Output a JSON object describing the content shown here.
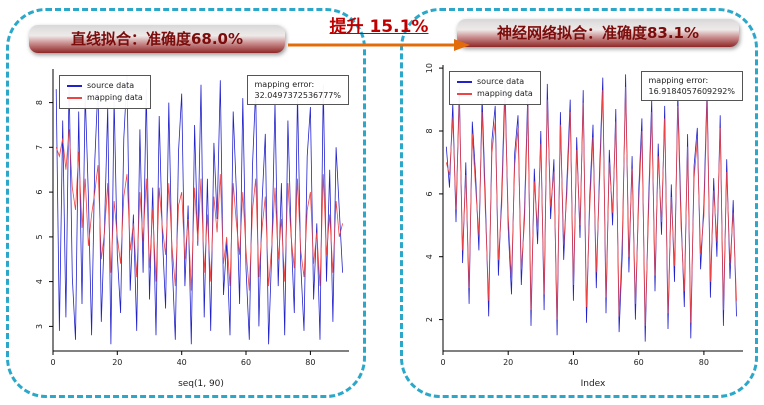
{
  "improvement": {
    "label": "提升 15.1%",
    "arrow_color": "#E36C0A"
  },
  "panels": [
    {
      "title": "直线拟合：准确度68.0%",
      "legend": [
        "source data",
        "mapping data"
      ],
      "error_label": "mapping error:",
      "error_value": "32.0497372536777%"
    },
    {
      "title": "神经网络拟合：准确度83.1%",
      "legend": [
        "source data",
        "mapping data"
      ],
      "error_label": "mapping error:",
      "error_value": "16.9184057609292%"
    }
  ],
  "chart_data": [
    {
      "type": "line",
      "xlabel": "seq(1, 90)",
      "xlim": [
        0,
        92
      ],
      "ylim": [
        2.45,
        8.75
      ],
      "xticks": [
        0,
        20,
        40,
        60,
        80
      ],
      "yticks": [
        3,
        4,
        5,
        6,
        7,
        8
      ],
      "legend_position": "top-left",
      "series": [
        {
          "name": "source data",
          "color": "#2222CC",
          "values": [
            8.3,
            2.9,
            7.6,
            3.2,
            8.5,
            4.1,
            2.7,
            7.8,
            3.5,
            8.2,
            5.9,
            2.8,
            6.7,
            8.4,
            3.1,
            5.2,
            7.9,
            2.6,
            8.1,
            4.6,
            3.3,
            7.2,
            8.6,
            3.8,
            5.5,
            2.9,
            7.4,
            4.2,
            8.3,
            3.6,
            6.1,
            2.8,
            7.7,
            5.0,
            3.4,
            8.0,
            4.5,
            2.7,
            6.9,
            8.2,
            3.9,
            5.7,
            2.6,
            7.5,
            4.8,
            8.4,
            3.2,
            6.3,
            2.9,
            7.1,
            5.4,
            8.5,
            3.7,
            4.9,
            2.8,
            7.8,
            6.0,
            3.5,
            8.1,
            4.3,
            2.7,
            6.6,
            8.3,
            3.0,
            5.8,
            7.3,
            2.6,
            4.7,
            8.0,
            3.9,
            6.2,
            2.8,
            7.6,
            5.1,
            3.3,
            8.2,
            4.4,
            2.9,
            6.8,
            7.9,
            3.6,
            5.3,
            2.7,
            8.4,
            4.0,
            6.5,
            3.1,
            7.0,
            5.6,
            4.2
          ]
        },
        {
          "name": "mapping data",
          "color": "#EE4444",
          "values": [
            7.0,
            6.8,
            7.2,
            6.5,
            7.4,
            6.1,
            5.6,
            6.9,
            5.2,
            6.3,
            4.8,
            5.5,
            6.0,
            6.6,
            4.5,
            5.1,
            6.2,
            4.2,
            5.8,
            5.0,
            4.4,
            5.9,
            6.4,
            4.7,
            5.3,
            4.1,
            6.0,
            4.9,
            6.3,
            4.3,
            5.6,
            4.0,
            6.1,
            5.2,
            4.6,
            6.2,
            4.8,
            3.9,
            5.7,
            6.0,
            4.5,
            5.4,
            3.8,
            6.1,
            4.9,
            6.3,
            4.2,
            5.5,
            4.0,
            5.9,
            5.1,
            6.4,
            4.4,
            5.0,
            3.9,
            6.2,
            5.3,
            4.6,
            6.0,
            4.7,
            3.8,
            5.6,
            6.3,
            4.1,
            5.2,
            5.9,
            3.9,
            4.8,
            6.1,
            4.5,
            5.4,
            4.0,
            6.2,
            5.0,
            4.3,
            6.3,
            4.7,
            4.1,
            5.6,
            6.0,
            4.4,
            5.1,
            3.9,
            6.4,
            4.6,
            5.5,
            4.2,
            5.8,
            5.0,
            5.3
          ]
        }
      ]
    },
    {
      "type": "line",
      "xlabel": "Index",
      "xlim": [
        0,
        92
      ],
      "ylim": [
        1.0,
        10.1
      ],
      "xticks": [
        0,
        20,
        40,
        60,
        80
      ],
      "yticks": [
        2,
        4,
        6,
        8,
        10
      ],
      "legend_position": "top-left",
      "series": [
        {
          "name": "source data",
          "color": "#2222CC",
          "values": [
            7.5,
            6.2,
            8.9,
            5.1,
            9.4,
            3.8,
            7.0,
            2.5,
            8.3,
            6.6,
            4.2,
            9.1,
            5.8,
            2.1,
            7.7,
            8.8,
            3.4,
            6.0,
            9.6,
            4.9,
            2.8,
            7.3,
            8.5,
            3.1,
            5.5,
            9.2,
            1.8,
            6.8,
            4.4,
            8.0,
            2.3,
            9.5,
            5.2,
            7.1,
            1.5,
            8.6,
            3.9,
            6.4,
            9.0,
            2.6,
            7.8,
            4.6,
            9.3,
            1.9,
            5.9,
            8.2,
            3.0,
            6.7,
            9.7,
            2.2,
            7.4,
            5.0,
            8.7,
            1.6,
            4.1,
            9.8,
            3.5,
            7.2,
            2.0,
            6.1,
            8.4,
            1.3,
            5.6,
            9.0,
            2.9,
            7.6,
            4.7,
            8.8,
            1.7,
            6.3,
            3.2,
            9.2,
            5.4,
            2.4,
            7.9,
            1.4,
            6.9,
            8.1,
            3.6,
            5.7,
            9.4,
            2.7,
            6.5,
            4.0,
            8.5,
            1.8,
            7.1,
            3.3,
            5.8,
            2.1
          ]
        },
        {
          "name": "mapping data",
          "color": "#EE4444",
          "values": [
            7.0,
            6.6,
            8.4,
            5.5,
            9.0,
            4.2,
            6.6,
            3.0,
            7.9,
            6.2,
            4.7,
            8.6,
            5.4,
            2.6,
            7.3,
            8.3,
            3.9,
            5.6,
            9.1,
            5.3,
            3.3,
            6.9,
            8.1,
            3.6,
            5.1,
            8.8,
            2.3,
            6.4,
            4.9,
            7.6,
            2.8,
            9.0,
            5.6,
            6.7,
            2.0,
            8.2,
            4.4,
            6.0,
            8.6,
            3.1,
            7.4,
            5.0,
            8.9,
            2.4,
            5.5,
            7.8,
            3.5,
            6.3,
            9.3,
            2.7,
            7.0,
            5.4,
            8.3,
            2.1,
            4.6,
            9.4,
            4.0,
            6.8,
            2.5,
            5.7,
            8.0,
            1.8,
            5.2,
            8.6,
            3.4,
            7.2,
            5.1,
            8.4,
            2.2,
            5.9,
            3.7,
            8.8,
            5.0,
            2.9,
            7.5,
            1.9,
            6.5,
            7.7,
            4.1,
            5.3,
            9.0,
            3.2,
            6.1,
            4.5,
            8.1,
            2.3,
            6.7,
            3.8,
            5.4,
            2.6
          ]
        }
      ]
    }
  ]
}
